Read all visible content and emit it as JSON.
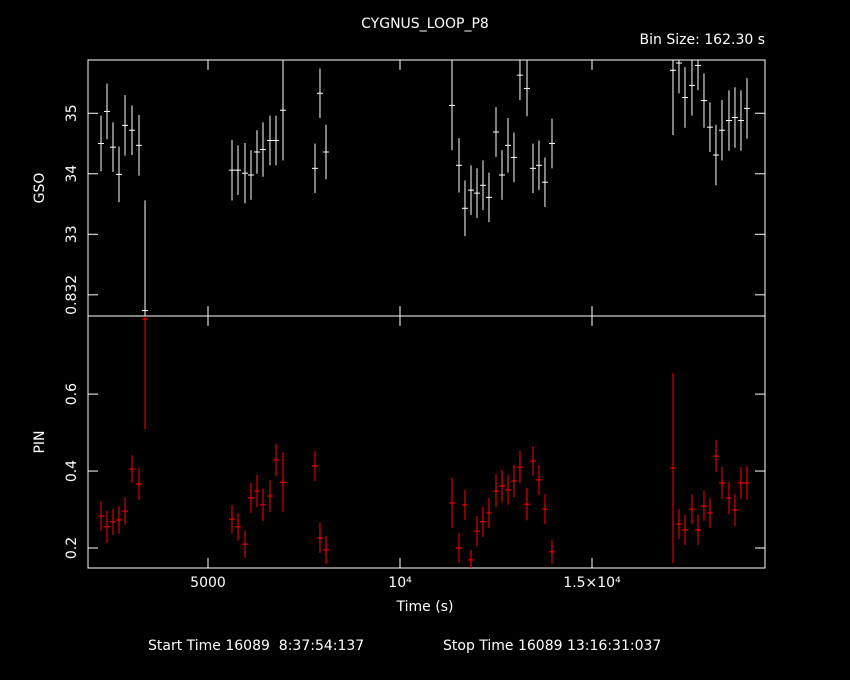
{
  "chart_data": [
    {
      "type": "errorbar",
      "title": "CYGNUS_LOOP_P8",
      "bin_size": "Bin Size: 162.30 s",
      "ylabel": "GSO",
      "color": "#ffffff",
      "xlim": [
        1875,
        19505
      ],
      "ylim": [
        0.83165,
        0.83588
      ],
      "yticks": [
        0.832,
        {
          "value": 0.833,
          "label": "33"
        },
        {
          "value": 0.834,
          "label": "34"
        },
        {
          "value": 0.835,
          "label": "35"
        }
      ],
      "x": [
        2214,
        2370,
        2526,
        2682,
        2839,
        3021,
        3203,
        3360,
        5625,
        5781,
        5963,
        6120,
        6276,
        6432,
        6614,
        6771,
        6953,
        7786,
        7916,
        8073,
        11354,
        11536,
        11692,
        11849,
        12005,
        12161,
        12317,
        12500,
        12656,
        12812,
        12968,
        13124,
        13307,
        13463,
        13619,
        13775,
        13958,
        17109,
        17265,
        17421,
        17603,
        17760,
        17916,
        18072,
        18228,
        18385,
        18567,
        18723,
        18879,
        19036
      ],
      "values": [
        0.8345,
        0.83503,
        0.83444,
        0.83399,
        0.8348,
        0.83472,
        0.83447,
        0.83174,
        0.83406,
        0.83406,
        0.83401,
        0.83398,
        0.83436,
        0.8344,
        0.83455,
        0.83455,
        0.83505,
        0.83409,
        0.83533,
        0.83436,
        0.83513,
        0.83414,
        0.83343,
        0.83373,
        0.83368,
        0.83381,
        0.83361,
        0.83469,
        0.83398,
        0.83447,
        0.83427,
        0.83563,
        0.83541,
        0.83409,
        0.83414,
        0.83386,
        0.8345,
        0.83571,
        0.83583,
        0.83526,
        0.83546,
        0.83579,
        0.83521,
        0.83477,
        0.83431,
        0.83472,
        0.83488,
        0.83493,
        0.83488,
        0.83508
      ],
      "errors": [
        0.00046,
        0.00046,
        0.00041,
        0.00046,
        0.0005,
        0.00041,
        0.0005,
        0.00182,
        0.0005,
        0.00041,
        0.0005,
        0.00041,
        0.00036,
        0.00045,
        0.00041,
        0.00041,
        0.00083,
        0.00041,
        0.00041,
        0.00045,
        0.00074,
        0.00045,
        0.00046,
        0.00041,
        0.00041,
        0.00041,
        0.00041,
        0.00041,
        0.00041,
        0.00045,
        0.00041,
        0.00041,
        0.00046,
        0.00041,
        0.00041,
        0.00041,
        0.00041,
        0.00107,
        0.0005,
        0.0005,
        0.0005,
        0.00041,
        0.00045,
        0.00041,
        0.0005,
        0.0005,
        0.0005,
        0.0005,
        0.0005,
        0.0005
      ]
    },
    {
      "type": "errorbar",
      "ylabel": "PIN",
      "xlabel": "Time (s)",
      "color": "#ff0000",
      "xlim": [
        1875,
        19505
      ],
      "ylim": [
        0.148,
        0.803
      ],
      "xticks": [
        5000,
        {
          "value": 10000,
          "label": "10⁴"
        },
        {
          "value": 15000,
          "label": "1.5×10⁴"
        }
      ],
      "yticks": [
        0.2,
        0.4,
        0.6
      ],
      "x": [
        2214,
        2370,
        2526,
        2682,
        2839,
        3021,
        3203,
        3360,
        5625,
        5781,
        5963,
        6120,
        6276,
        6432,
        6614,
        6771,
        6953,
        7786,
        7916,
        8073,
        11354,
        11536,
        11692,
        11849,
        12005,
        12161,
        12317,
        12500,
        12656,
        12812,
        12968,
        13124,
        13307,
        13463,
        13619,
        13775,
        13958,
        17109,
        17265,
        17421,
        17603,
        17760,
        17916,
        18072,
        18228,
        18385,
        18567,
        18723,
        18879,
        19036
      ],
      "values": [
        0.283,
        0.255,
        0.268,
        0.273,
        0.296,
        0.405,
        0.366,
        0.795,
        0.275,
        0.255,
        0.21,
        0.33,
        0.348,
        0.312,
        0.335,
        0.429,
        0.371,
        0.413,
        0.226,
        0.195,
        0.317,
        0.2,
        0.312,
        0.169,
        0.244,
        0.268,
        0.291,
        0.348,
        0.361,
        0.351,
        0.374,
        0.41,
        0.314,
        0.426,
        0.377,
        0.301,
        0.19,
        0.408,
        0.262,
        0.247,
        0.301,
        0.247,
        0.309,
        0.291,
        0.439,
        0.369,
        0.33,
        0.299,
        0.369,
        0.369
      ],
      "errors": [
        0.039,
        0.042,
        0.034,
        0.036,
        0.036,
        0.036,
        0.042,
        0.286,
        0.036,
        0.036,
        0.036,
        0.039,
        0.042,
        0.042,
        0.042,
        0.042,
        0.078,
        0.039,
        0.039,
        0.036,
        0.065,
        0.039,
        0.039,
        0.026,
        0.039,
        0.039,
        0.039,
        0.042,
        0.042,
        0.039,
        0.042,
        0.042,
        0.042,
        0.039,
        0.039,
        0.039,
        0.031,
        0.247,
        0.039,
        0.039,
        0.039,
        0.039,
        0.039,
        0.039,
        0.042,
        0.042,
        0.042,
        0.042,
        0.042,
        0.044
      ]
    }
  ],
  "footer": {
    "start": "Start Time 16089  8:37:54:137",
    "stop": "Stop Time 16089 13:16:31:037"
  }
}
